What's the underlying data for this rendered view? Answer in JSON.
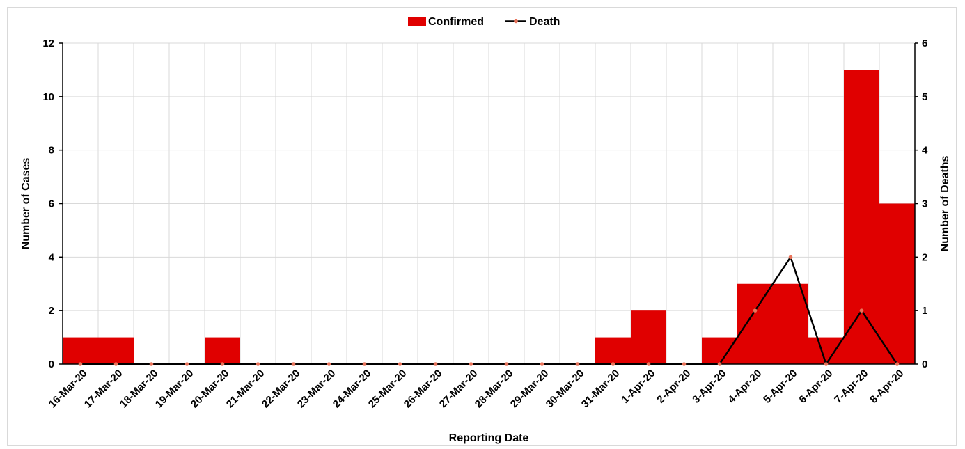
{
  "chart_data": {
    "type": "bar",
    "categories": [
      "16-Mar-20",
      "17-Mar-20",
      "18-Mar-20",
      "19-Mar-20",
      "20-Mar-20",
      "21-Mar-20",
      "22-Mar-20",
      "23-Mar-20",
      "24-Mar-20",
      "25-Mar-20",
      "26-Mar-20",
      "27-Mar-20",
      "28-Mar-20",
      "29-Mar-20",
      "30-Mar-20",
      "31-Mar-20",
      "1-Apr-20",
      "2-Apr-20",
      "3-Apr-20",
      "4-Apr-20",
      "5-Apr-20",
      "6-Apr-20",
      "7-Apr-20",
      "8-Apr-20"
    ],
    "series": [
      {
        "name": "Confirmed",
        "type": "bar",
        "axis": "left",
        "color": "#e00000",
        "values": [
          1,
          1,
          0,
          0,
          1,
          0,
          0,
          0,
          0,
          0,
          0,
          0,
          0,
          0,
          0,
          1,
          2,
          0,
          1,
          3,
          3,
          1,
          11,
          6
        ]
      },
      {
        "name": "Death",
        "type": "line",
        "axis": "right",
        "color": "#000000",
        "marker_color": "#e8735a",
        "values": [
          0,
          0,
          0,
          0,
          0,
          0,
          0,
          0,
          0,
          0,
          0,
          0,
          0,
          0,
          0,
          0,
          0,
          0,
          0,
          1,
          2,
          0,
          1,
          0
        ]
      }
    ],
    "xlabel": "Reporting Date",
    "ylabel": "Number of Cases",
    "y2label": "Number of Deaths",
    "ylim": [
      0,
      12
    ],
    "yticks": [
      0,
      2,
      4,
      6,
      8,
      10,
      12
    ],
    "y2lim": [
      0,
      6
    ],
    "y2ticks": [
      0,
      1,
      2,
      3,
      4,
      5,
      6
    ],
    "grid": true,
    "legend": "top-center"
  }
}
